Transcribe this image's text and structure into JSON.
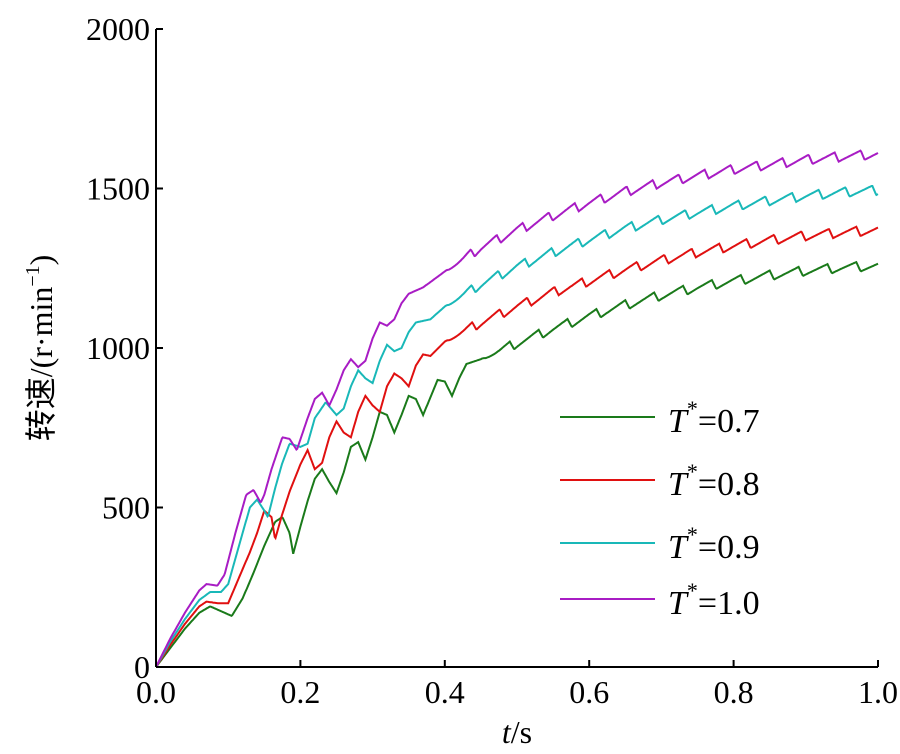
{
  "chart_data": {
    "type": "line",
    "xlabel_var": "t",
    "xlabel_unit": "/s",
    "ylabel": "转速/(r·min",
    "ylabel_sup": "−1",
    "ylabel_close": ")",
    "xlim": [
      0.0,
      1.0
    ],
    "ylim": [
      0,
      2000
    ],
    "x_ticks": [
      0.0,
      0.2,
      0.4,
      0.6,
      0.8,
      1.0
    ],
    "x_tick_labels": [
      "0.0",
      "0.2",
      "0.4",
      "0.6",
      "0.8",
      "1.0"
    ],
    "y_ticks": [
      0,
      500,
      1000,
      1500,
      2000
    ],
    "y_tick_labels": [
      "0",
      "500",
      "1000",
      "1500",
      "2000"
    ],
    "grid": false,
    "legend_position": "lower-right",
    "legend_symbol": "T",
    "legend_sup": "*",
    "series": [
      {
        "name": "T*=0.7",
        "value_label": "=0.7",
        "color": "#1a7a1a",
        "points": [
          [
            0.0,
            0
          ],
          [
            0.02,
            60
          ],
          [
            0.04,
            120
          ],
          [
            0.06,
            170
          ],
          [
            0.075,
            190
          ],
          [
            0.09,
            175
          ],
          [
            0.105,
            160
          ],
          [
            0.12,
            215
          ],
          [
            0.135,
            295
          ],
          [
            0.15,
            380
          ],
          [
            0.165,
            455
          ],
          [
            0.175,
            470
          ],
          [
            0.185,
            420
          ],
          [
            0.19,
            355
          ],
          [
            0.2,
            440
          ],
          [
            0.21,
            520
          ],
          [
            0.22,
            590
          ],
          [
            0.23,
            620
          ],
          [
            0.24,
            580
          ],
          [
            0.25,
            545
          ],
          [
            0.26,
            610
          ],
          [
            0.27,
            690
          ],
          [
            0.28,
            705
          ],
          [
            0.29,
            650
          ],
          [
            0.3,
            720
          ],
          [
            0.31,
            800
          ],
          [
            0.32,
            790
          ],
          [
            0.33,
            735
          ],
          [
            0.34,
            790
          ],
          [
            0.35,
            850
          ],
          [
            0.36,
            840
          ],
          [
            0.37,
            790
          ],
          [
            0.38,
            845
          ],
          [
            0.39,
            900
          ],
          [
            0.4,
            895
          ],
          [
            0.41,
            850
          ],
          [
            0.42,
            905
          ],
          [
            0.43,
            950
          ],
          [
            0.45,
            965
          ],
          [
            0.5,
            1015
          ],
          [
            0.55,
            1060
          ],
          [
            0.6,
            1100
          ],
          [
            0.65,
            1135
          ],
          [
            0.7,
            1165
          ],
          [
            0.75,
            1190
          ],
          [
            0.8,
            1210
          ],
          [
            0.85,
            1228
          ],
          [
            0.9,
            1242
          ],
          [
            0.95,
            1252
          ],
          [
            1.0,
            1258
          ]
        ],
        "osc_amp": 30,
        "osc_period": 0.04
      },
      {
        "name": "T*=0.8",
        "value_label": "=0.8",
        "color": "#e01010",
        "points": [
          [
            0.0,
            0
          ],
          [
            0.02,
            70
          ],
          [
            0.04,
            135
          ],
          [
            0.06,
            190
          ],
          [
            0.07,
            205
          ],
          [
            0.085,
            200
          ],
          [
            0.1,
            200
          ],
          [
            0.115,
            280
          ],
          [
            0.13,
            360
          ],
          [
            0.14,
            420
          ],
          [
            0.15,
            490
          ],
          [
            0.16,
            470
          ],
          [
            0.165,
            400
          ],
          [
            0.175,
            480
          ],
          [
            0.185,
            550
          ],
          [
            0.2,
            635
          ],
          [
            0.21,
            680
          ],
          [
            0.22,
            620
          ],
          [
            0.23,
            640
          ],
          [
            0.24,
            720
          ],
          [
            0.25,
            770
          ],
          [
            0.26,
            735
          ],
          [
            0.27,
            720
          ],
          [
            0.28,
            800
          ],
          [
            0.29,
            850
          ],
          [
            0.3,
            820
          ],
          [
            0.31,
            800
          ],
          [
            0.32,
            880
          ],
          [
            0.33,
            920
          ],
          [
            0.34,
            905
          ],
          [
            0.35,
            880
          ],
          [
            0.36,
            945
          ],
          [
            0.37,
            980
          ],
          [
            0.38,
            975
          ],
          [
            0.4,
            1020
          ],
          [
            0.45,
            1080
          ],
          [
            0.5,
            1130
          ],
          [
            0.55,
            1175
          ],
          [
            0.6,
            1210
          ],
          [
            0.65,
            1245
          ],
          [
            0.7,
            1275
          ],
          [
            0.75,
            1300
          ],
          [
            0.8,
            1320
          ],
          [
            0.85,
            1338
          ],
          [
            0.9,
            1352
          ],
          [
            0.95,
            1362
          ],
          [
            1.0,
            1370
          ]
        ],
        "osc_amp": 30,
        "osc_period": 0.038
      },
      {
        "name": "T*=0.9",
        "value_label": "=0.9",
        "color": "#19b8b8",
        "points": [
          [
            0.0,
            0
          ],
          [
            0.02,
            80
          ],
          [
            0.04,
            150
          ],
          [
            0.06,
            210
          ],
          [
            0.075,
            235
          ],
          [
            0.09,
            235
          ],
          [
            0.1,
            260
          ],
          [
            0.115,
            380
          ],
          [
            0.13,
            500
          ],
          [
            0.14,
            525
          ],
          [
            0.15,
            490
          ],
          [
            0.155,
            470
          ],
          [
            0.165,
            560
          ],
          [
            0.175,
            640
          ],
          [
            0.185,
            700
          ],
          [
            0.2,
            690
          ],
          [
            0.21,
            700
          ],
          [
            0.22,
            780
          ],
          [
            0.235,
            830
          ],
          [
            0.25,
            790
          ],
          [
            0.26,
            810
          ],
          [
            0.27,
            880
          ],
          [
            0.28,
            930
          ],
          [
            0.29,
            905
          ],
          [
            0.3,
            890
          ],
          [
            0.31,
            960
          ],
          [
            0.32,
            1010
          ],
          [
            0.33,
            990
          ],
          [
            0.34,
            1000
          ],
          [
            0.35,
            1050
          ],
          [
            0.36,
            1080
          ],
          [
            0.38,
            1090
          ],
          [
            0.4,
            1130
          ],
          [
            0.45,
            1200
          ],
          [
            0.5,
            1255
          ],
          [
            0.55,
            1300
          ],
          [
            0.6,
            1340
          ],
          [
            0.65,
            1375
          ],
          [
            0.7,
            1402
          ],
          [
            0.75,
            1425
          ],
          [
            0.8,
            1445
          ],
          [
            0.85,
            1462
          ],
          [
            0.9,
            1477
          ],
          [
            0.95,
            1488
          ],
          [
            1.0,
            1495
          ]
        ],
        "osc_amp": 30,
        "osc_period": 0.037
      },
      {
        "name": "T*=1.0",
        "value_label": "=1.0",
        "color": "#a81cc4",
        "points": [
          [
            0.0,
            0
          ],
          [
            0.02,
            90
          ],
          [
            0.04,
            170
          ],
          [
            0.06,
            240
          ],
          [
            0.07,
            260
          ],
          [
            0.085,
            255
          ],
          [
            0.095,
            290
          ],
          [
            0.11,
            420
          ],
          [
            0.125,
            540
          ],
          [
            0.135,
            555
          ],
          [
            0.145,
            515
          ],
          [
            0.15,
            540
          ],
          [
            0.16,
            620
          ],
          [
            0.175,
            720
          ],
          [
            0.185,
            715
          ],
          [
            0.195,
            680
          ],
          [
            0.21,
            780
          ],
          [
            0.22,
            840
          ],
          [
            0.23,
            860
          ],
          [
            0.24,
            820
          ],
          [
            0.25,
            870
          ],
          [
            0.26,
            930
          ],
          [
            0.27,
            965
          ],
          [
            0.28,
            940
          ],
          [
            0.29,
            960
          ],
          [
            0.3,
            1030
          ],
          [
            0.31,
            1080
          ],
          [
            0.32,
            1070
          ],
          [
            0.33,
            1090
          ],
          [
            0.34,
            1140
          ],
          [
            0.35,
            1170
          ],
          [
            0.37,
            1190
          ],
          [
            0.4,
            1240
          ],
          [
            0.45,
            1315
          ],
          [
            0.5,
            1370
          ],
          [
            0.55,
            1415
          ],
          [
            0.6,
            1455
          ],
          [
            0.65,
            1490
          ],
          [
            0.7,
            1518
          ],
          [
            0.75,
            1540
          ],
          [
            0.8,
            1560
          ],
          [
            0.85,
            1575
          ],
          [
            0.9,
            1590
          ],
          [
            0.95,
            1600
          ],
          [
            1.0,
            1608
          ]
        ],
        "osc_amp": 30,
        "osc_period": 0.036
      }
    ]
  }
}
